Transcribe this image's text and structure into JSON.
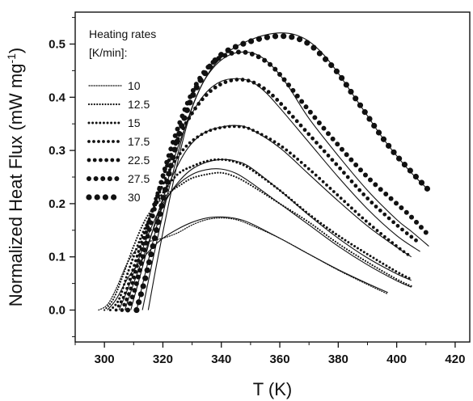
{
  "chart_data": {
    "type": "line",
    "xlabel": "T (K)",
    "ylabel_main": "Normalized Heat Flux (mW mg",
    "ylabel_sup": "-1",
    "ylabel_close": ")",
    "xlim": [
      290,
      425
    ],
    "ylim": [
      -0.06,
      0.56
    ],
    "xticks": [
      300,
      320,
      340,
      360,
      380,
      400,
      420
    ],
    "yticks": [
      0.0,
      0.1,
      0.2,
      0.3,
      0.4,
      0.5
    ],
    "xtick_labels": [
      "300",
      "320",
      "340",
      "360",
      "380",
      "400",
      "420"
    ],
    "ytick_labels": [
      "0.0",
      "0.1",
      "0.2",
      "0.3",
      "0.4",
      "0.5"
    ],
    "legend": {
      "title_line1": "Heating rates",
      "title_line2": "[K/min]:",
      "placement": "top-left"
    },
    "series": [
      {
        "name": "10",
        "measured": [
          [
            298,
            0.0
          ],
          [
            301,
            0.01
          ],
          [
            304,
            0.04
          ],
          [
            308,
            0.09
          ],
          [
            312,
            0.12
          ],
          [
            316,
            0.13
          ],
          [
            320,
            0.135
          ],
          [
            325,
            0.145
          ],
          [
            330,
            0.16
          ],
          [
            335,
            0.17
          ],
          [
            340,
            0.173
          ],
          [
            345,
            0.17
          ],
          [
            350,
            0.16
          ],
          [
            360,
            0.135
          ],
          [
            370,
            0.105
          ],
          [
            380,
            0.075
          ],
          [
            390,
            0.048
          ],
          [
            397,
            0.03
          ]
        ],
        "fit": [
          [
            301,
            0.0
          ],
          [
            304,
            0.02
          ],
          [
            308,
            0.06
          ],
          [
            312,
            0.09
          ],
          [
            316,
            0.115
          ],
          [
            320,
            0.135
          ],
          [
            325,
            0.152
          ],
          [
            330,
            0.165
          ],
          [
            335,
            0.173
          ],
          [
            340,
            0.175
          ],
          [
            345,
            0.172
          ],
          [
            350,
            0.163
          ],
          [
            360,
            0.135
          ],
          [
            370,
            0.105
          ],
          [
            380,
            0.076
          ],
          [
            390,
            0.05
          ],
          [
            397,
            0.033
          ]
        ]
      },
      {
        "name": "12.5",
        "measured": [
          [
            300,
            0.0
          ],
          [
            303,
            0.02
          ],
          [
            306,
            0.06
          ],
          [
            310,
            0.12
          ],
          [
            314,
            0.17
          ],
          [
            318,
            0.2
          ],
          [
            322,
            0.22
          ],
          [
            326,
            0.235
          ],
          [
            330,
            0.248
          ],
          [
            335,
            0.255
          ],
          [
            340,
            0.258
          ],
          [
            345,
            0.25
          ],
          [
            350,
            0.235
          ],
          [
            360,
            0.2
          ],
          [
            370,
            0.165
          ],
          [
            380,
            0.125
          ],
          [
            390,
            0.09
          ],
          [
            400,
            0.058
          ],
          [
            405,
            0.045
          ]
        ],
        "fit": [
          [
            305,
            0.0
          ],
          [
            308,
            0.04
          ],
          [
            312,
            0.1
          ],
          [
            316,
            0.155
          ],
          [
            320,
            0.2
          ],
          [
            325,
            0.235
          ],
          [
            330,
            0.255
          ],
          [
            335,
            0.264
          ],
          [
            340,
            0.265
          ],
          [
            345,
            0.257
          ],
          [
            350,
            0.24
          ],
          [
            360,
            0.2
          ],
          [
            370,
            0.16
          ],
          [
            380,
            0.12
          ],
          [
            390,
            0.085
          ],
          [
            400,
            0.055
          ],
          [
            405,
            0.043
          ]
        ]
      },
      {
        "name": "15",
        "measured": [
          [
            302,
            0.0
          ],
          [
            305,
            0.02
          ],
          [
            308,
            0.07
          ],
          [
            312,
            0.13
          ],
          [
            316,
            0.18
          ],
          [
            320,
            0.22
          ],
          [
            325,
            0.255
          ],
          [
            330,
            0.27
          ],
          [
            335,
            0.28
          ],
          [
            340,
            0.283
          ],
          [
            345,
            0.278
          ],
          [
            350,
            0.265
          ],
          [
            360,
            0.225
          ],
          [
            370,
            0.18
          ],
          [
            380,
            0.14
          ],
          [
            390,
            0.105
          ],
          [
            400,
            0.072
          ],
          [
            405,
            0.058
          ]
        ],
        "fit": [
          [
            307,
            0.0
          ],
          [
            310,
            0.05
          ],
          [
            314,
            0.11
          ],
          [
            318,
            0.17
          ],
          [
            322,
            0.215
          ],
          [
            326,
            0.245
          ],
          [
            330,
            0.265
          ],
          [
            335,
            0.278
          ],
          [
            340,
            0.283
          ],
          [
            345,
            0.28
          ],
          [
            350,
            0.268
          ],
          [
            360,
            0.225
          ],
          [
            370,
            0.178
          ],
          [
            380,
            0.135
          ],
          [
            390,
            0.098
          ],
          [
            400,
            0.068
          ],
          [
            405,
            0.056
          ]
        ]
      },
      {
        "name": "17.5",
        "measured": [
          [
            304,
            0.0
          ],
          [
            307,
            0.03
          ],
          [
            310,
            0.08
          ],
          [
            314,
            0.15
          ],
          [
            318,
            0.21
          ],
          [
            322,
            0.26
          ],
          [
            326,
            0.295
          ],
          [
            330,
            0.318
          ],
          [
            335,
            0.335
          ],
          [
            340,
            0.343
          ],
          [
            345,
            0.345
          ],
          [
            350,
            0.34
          ],
          [
            360,
            0.31
          ],
          [
            370,
            0.265
          ],
          [
            380,
            0.215
          ],
          [
            390,
            0.165
          ],
          [
            400,
            0.12
          ],
          [
            405,
            0.1
          ]
        ],
        "fit": [
          [
            309,
            0.0
          ],
          [
            312,
            0.06
          ],
          [
            316,
            0.14
          ],
          [
            320,
            0.21
          ],
          [
            324,
            0.26
          ],
          [
            328,
            0.3
          ],
          [
            332,
            0.325
          ],
          [
            336,
            0.338
          ],
          [
            340,
            0.344
          ],
          [
            345,
            0.347
          ],
          [
            350,
            0.34
          ],
          [
            360,
            0.305
          ],
          [
            370,
            0.255
          ],
          [
            380,
            0.205
          ],
          [
            390,
            0.158
          ],
          [
            400,
            0.118
          ],
          [
            405,
            0.1
          ]
        ]
      },
      {
        "name": "22.5",
        "measured": [
          [
            306,
            0.0
          ],
          [
            309,
            0.04
          ],
          [
            312,
            0.1
          ],
          [
            316,
            0.18
          ],
          [
            320,
            0.25
          ],
          [
            325,
            0.32
          ],
          [
            330,
            0.37
          ],
          [
            335,
            0.405
          ],
          [
            340,
            0.425
          ],
          [
            345,
            0.433
          ],
          [
            350,
            0.43
          ],
          [
            355,
            0.415
          ],
          [
            360,
            0.39
          ],
          [
            370,
            0.33
          ],
          [
            380,
            0.27
          ],
          [
            390,
            0.21
          ],
          [
            400,
            0.16
          ],
          [
            408,
            0.125
          ]
        ],
        "fit": [
          [
            311,
            0.0
          ],
          [
            314,
            0.07
          ],
          [
            318,
            0.16
          ],
          [
            322,
            0.25
          ],
          [
            326,
            0.32
          ],
          [
            330,
            0.37
          ],
          [
            335,
            0.41
          ],
          [
            340,
            0.43
          ],
          [
            345,
            0.435
          ],
          [
            350,
            0.43
          ],
          [
            355,
            0.41
          ],
          [
            360,
            0.38
          ],
          [
            370,
            0.315
          ],
          [
            380,
            0.25
          ],
          [
            390,
            0.19
          ],
          [
            400,
            0.14
          ],
          [
            408,
            0.11
          ]
        ]
      },
      {
        "name": "27.5",
        "measured": [
          [
            308,
            0.0
          ],
          [
            311,
            0.05
          ],
          [
            314,
            0.12
          ],
          [
            318,
            0.21
          ],
          [
            322,
            0.29
          ],
          [
            327,
            0.37
          ],
          [
            332,
            0.43
          ],
          [
            337,
            0.465
          ],
          [
            342,
            0.48
          ],
          [
            347,
            0.485
          ],
          [
            352,
            0.478
          ],
          [
            357,
            0.46
          ],
          [
            362,
            0.43
          ],
          [
            370,
            0.375
          ],
          [
            380,
            0.31
          ],
          [
            390,
            0.25
          ],
          [
            400,
            0.2
          ],
          [
            405,
            0.175
          ],
          [
            411,
            0.14
          ]
        ],
        "fit": [
          [
            313,
            0.0
          ],
          [
            316,
            0.08
          ],
          [
            320,
            0.18
          ],
          [
            324,
            0.27
          ],
          [
            328,
            0.35
          ],
          [
            333,
            0.42
          ],
          [
            338,
            0.46
          ],
          [
            343,
            0.48
          ],
          [
            348,
            0.485
          ],
          [
            353,
            0.478
          ],
          [
            358,
            0.455
          ],
          [
            363,
            0.42
          ],
          [
            370,
            0.36
          ],
          [
            380,
            0.29
          ],
          [
            390,
            0.225
          ],
          [
            400,
            0.17
          ],
          [
            405,
            0.148
          ],
          [
            411,
            0.12
          ]
        ]
      },
      {
        "name": "30",
        "measured": [
          [
            311,
            0.0
          ],
          [
            314,
            0.06
          ],
          [
            317,
            0.13
          ],
          [
            321,
            0.23
          ],
          [
            325,
            0.32
          ],
          [
            330,
            0.4
          ],
          [
            335,
            0.45
          ],
          [
            340,
            0.48
          ],
          [
            345,
            0.495
          ],
          [
            350,
            0.505
          ],
          [
            355,
            0.512
          ],
          [
            360,
            0.515
          ],
          [
            365,
            0.512
          ],
          [
            370,
            0.5
          ],
          [
            375,
            0.475
          ],
          [
            380,
            0.445
          ],
          [
            385,
            0.405
          ],
          [
            390,
            0.365
          ],
          [
            395,
            0.325
          ],
          [
            400,
            0.29
          ],
          [
            405,
            0.26
          ],
          [
            411,
            0.225
          ]
        ],
        "fit": [
          [
            315,
            0.0
          ],
          [
            318,
            0.09
          ],
          [
            322,
            0.2
          ],
          [
            326,
            0.3
          ],
          [
            330,
            0.38
          ],
          [
            335,
            0.44
          ],
          [
            340,
            0.475
          ],
          [
            345,
            0.495
          ],
          [
            350,
            0.508
          ],
          [
            355,
            0.517
          ],
          [
            360,
            0.521
          ],
          [
            365,
            0.518
          ],
          [
            370,
            0.505
          ],
          [
            375,
            0.48
          ],
          [
            380,
            0.445
          ],
          [
            385,
            0.405
          ],
          [
            390,
            0.365
          ],
          [
            395,
            0.325
          ],
          [
            400,
            0.29
          ],
          [
            405,
            0.258
          ],
          [
            411,
            0.225
          ]
        ]
      }
    ]
  }
}
